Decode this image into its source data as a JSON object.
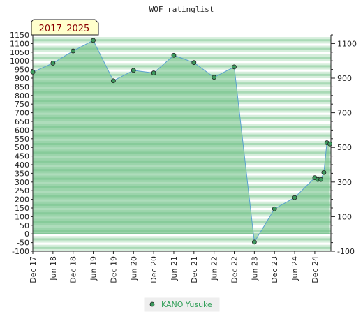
{
  "chart_data": {
    "type": "area",
    "title": "WOF ratinglist",
    "period_label": "2017–2025",
    "y_left": {
      "ticks": [
        -100,
        -50,
        0,
        50,
        100,
        150,
        200,
        250,
        300,
        350,
        400,
        450,
        500,
        550,
        600,
        650,
        700,
        750,
        800,
        850,
        900,
        950,
        1000,
        1050,
        1100,
        1150
      ]
    },
    "y_right": {
      "ticks": [
        -100,
        100,
        300,
        500,
        700,
        900,
        1100
      ]
    },
    "ylim": [
      -100,
      1150
    ],
    "x_ticks": [
      "Dec 17",
      "Jun 18",
      "Dec 18",
      "Jun 19",
      "Dec 19",
      "Jun 20",
      "Dec 20",
      "Jun 21",
      "Dec 21",
      "Jun 22",
      "Dec 22",
      "Jun 23",
      "Dec 23",
      "Jun 24",
      "Dec 24"
    ],
    "series": [
      {
        "name": "KANO Yusuke",
        "x": [
          0,
          1,
          2,
          3,
          4,
          5,
          6,
          7,
          8,
          9,
          10,
          11,
          12,
          13,
          14,
          14.15,
          14.3,
          14.45,
          14.6,
          14.75
        ],
        "values": [
          935,
          987,
          1057,
          1118,
          885,
          945,
          930,
          1032,
          990,
          905,
          965,
          -47,
          145,
          210,
          325,
          315,
          315,
          355,
          527,
          520
        ]
      }
    ],
    "colors": {
      "line": "#5aa0d0",
      "area": "#6cbf84",
      "marker": "#3d9a5e",
      "legend_text": "#33a05a",
      "period_text": "#8b0000",
      "period_bg": "#ffffcc"
    }
  }
}
